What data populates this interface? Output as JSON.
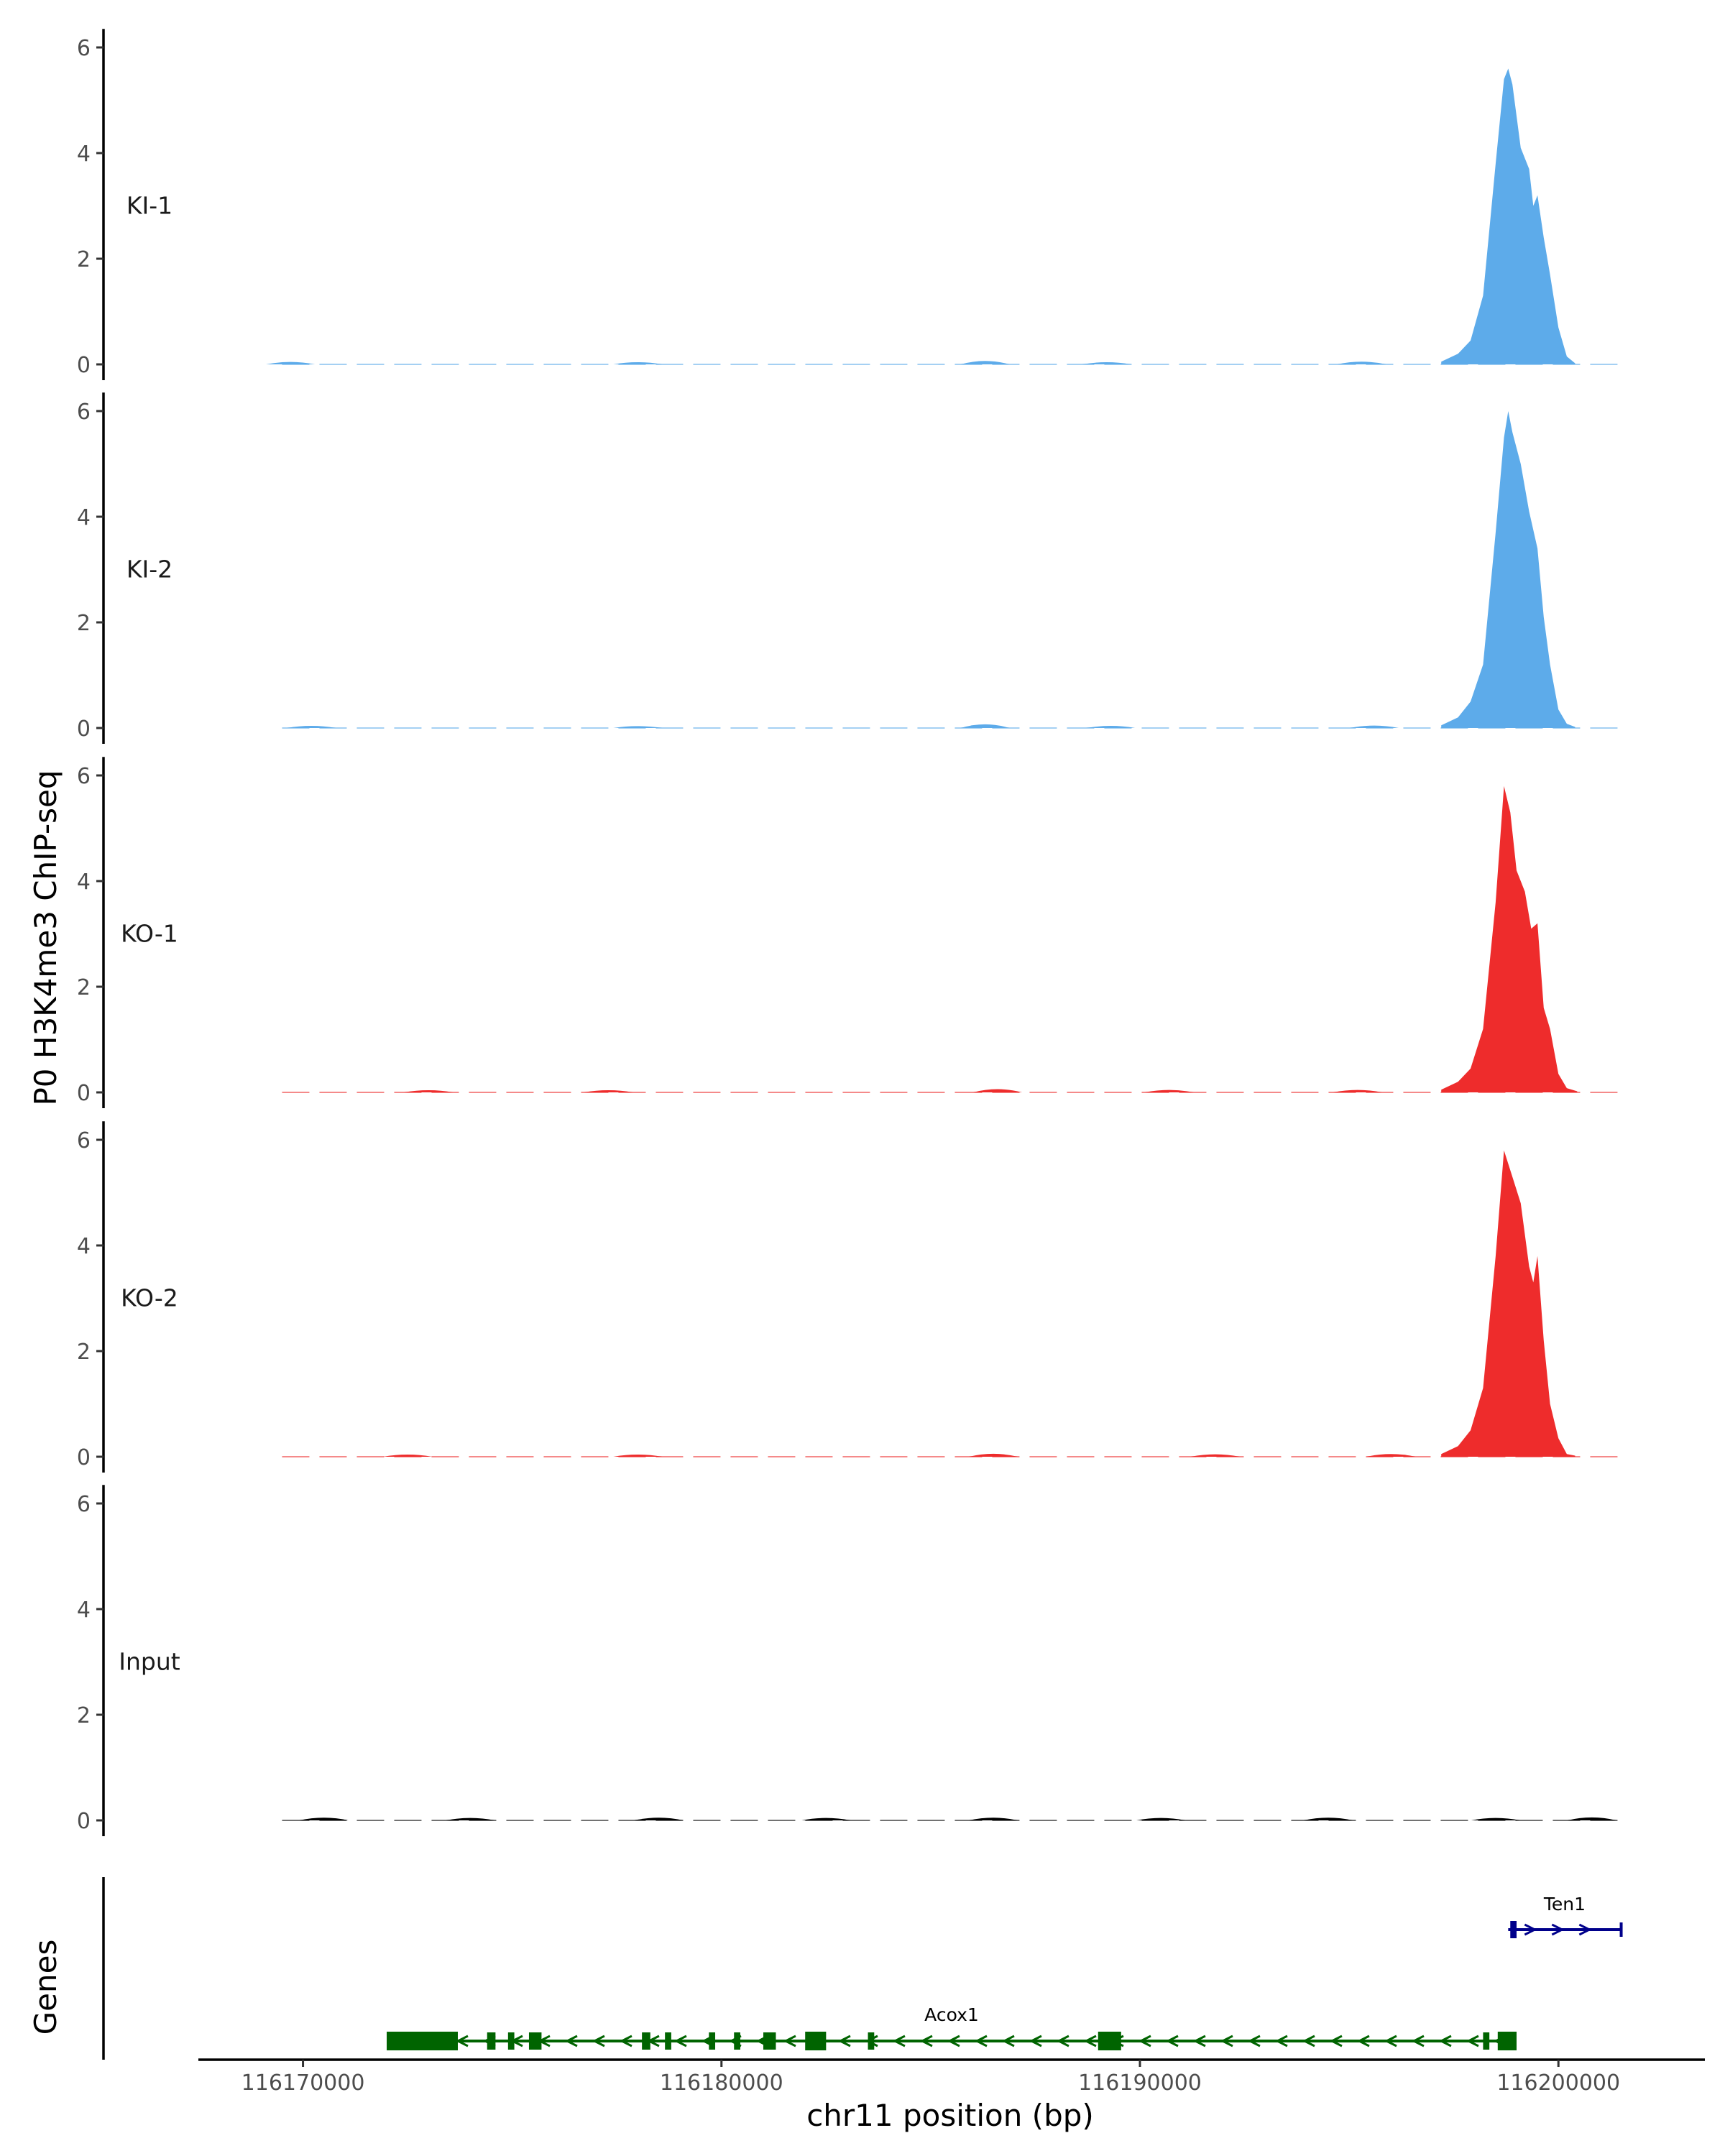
{
  "chart_data": {
    "type": "area",
    "title": "",
    "ylabel": "P0 H3K4me3 ChIP-seq",
    "xlabel": "chr11 position (bp)",
    "gene_panel_label": "Genes",
    "ylim": [
      0,
      6.3
    ],
    "yticks": [
      "0",
      "2",
      "4",
      "6"
    ],
    "xlim": [
      116167500,
      116203500
    ],
    "xticks": [
      "116170000",
      "116180000",
      "116190000",
      "116200000"
    ],
    "xtick_values": [
      116170000,
      116180000,
      116190000,
      116200000
    ],
    "data_range": [
      116169500,
      116201500
    ],
    "tracks": [
      {
        "name": "KI-1",
        "color": "#5dabea",
        "peak": {
          "x": [
            116197200,
            116197600,
            116197900,
            116198200,
            116198500,
            116198700,
            116198800,
            116198900,
            116199100,
            116199300,
            116199400,
            116199500,
            116199650,
            116199800,
            116200000,
            116200200,
            116200400
          ],
          "y": [
            0.05,
            0.2,
            0.45,
            1.3,
            3.8,
            5.4,
            5.6,
            5.3,
            4.1,
            3.7,
            3.0,
            3.2,
            2.4,
            1.7,
            0.7,
            0.15,
            0.02
          ]
        },
        "bumps": [
          [
            116169700,
            0.05
          ],
          [
            116178000,
            0.04
          ],
          [
            116186300,
            0.09
          ],
          [
            116189200,
            0.04
          ],
          [
            116195300,
            0.06
          ]
        ]
      },
      {
        "name": "KI-2",
        "color": "#5dabea",
        "peak": {
          "x": [
            116197200,
            116197600,
            116197900,
            116198200,
            116198500,
            116198700,
            116198800,
            116198900,
            116199100,
            116199300,
            116199500,
            116199650,
            116199800,
            116200000,
            116200200,
            116200400
          ],
          "y": [
            0.05,
            0.2,
            0.5,
            1.2,
            3.7,
            5.5,
            6.0,
            5.6,
            5.0,
            4.1,
            3.4,
            2.1,
            1.2,
            0.35,
            0.08,
            0.02
          ]
        },
        "bumps": [
          [
            116170200,
            0.04
          ],
          [
            116178000,
            0.03
          ],
          [
            116186300,
            0.1
          ],
          [
            116189300,
            0.04
          ],
          [
            116195600,
            0.05
          ]
        ]
      },
      {
        "name": "KO-1",
        "color": "#ee2c2c",
        "peak": {
          "x": [
            116197200,
            116197600,
            116197900,
            116198200,
            116198500,
            116198700,
            116198850,
            116199000,
            116199200,
            116199350,
            116199500,
            116199650,
            116199800,
            116200000,
            116200200,
            116200450
          ],
          "y": [
            0.05,
            0.2,
            0.45,
            1.2,
            3.6,
            5.8,
            5.3,
            4.2,
            3.8,
            3.1,
            3.2,
            1.6,
            1.2,
            0.35,
            0.08,
            0.02
          ]
        },
        "bumps": [
          [
            116173000,
            0.04
          ],
          [
            116177300,
            0.04
          ],
          [
            116186600,
            0.08
          ],
          [
            116190700,
            0.05
          ],
          [
            116195200,
            0.05
          ]
        ]
      },
      {
        "name": "KO-2",
        "color": "#ee2c2c",
        "peak": {
          "x": [
            116197200,
            116197600,
            116197900,
            116198200,
            116198500,
            116198700,
            116198900,
            116199100,
            116199300,
            116199400,
            116199500,
            116199650,
            116199800,
            116200000,
            116200200,
            116200400
          ],
          "y": [
            0.05,
            0.2,
            0.5,
            1.3,
            3.8,
            5.8,
            5.3,
            4.8,
            3.6,
            3.3,
            3.8,
            2.2,
            1.0,
            0.35,
            0.05,
            0.02
          ]
        },
        "bumps": [
          [
            116172500,
            0.04
          ],
          [
            116178000,
            0.04
          ],
          [
            116186500,
            0.07
          ],
          [
            116191800,
            0.05
          ],
          [
            116196000,
            0.06
          ]
        ]
      },
      {
        "name": "Input",
        "color": "#000000",
        "peak": null,
        "bumps": [
          [
            116170500,
            0.06
          ],
          [
            116174000,
            0.05
          ],
          [
            116178500,
            0.06
          ],
          [
            116182500,
            0.05
          ],
          [
            116186500,
            0.06
          ],
          [
            116190500,
            0.05
          ],
          [
            116194500,
            0.06
          ],
          [
            116198500,
            0.05
          ],
          [
            116200800,
            0.07
          ]
        ]
      }
    ],
    "genes": [
      {
        "name": "Acox1",
        "strand": "-",
        "color": "#006400",
        "start": 116172000,
        "end": 116199000,
        "exons": [
          [
            116172000,
            116173700
          ],
          [
            116174400,
            116174600
          ],
          [
            116174900,
            116175050
          ],
          [
            116175400,
            116175700
          ],
          [
            116178100,
            116178300
          ],
          [
            116178650,
            116178800
          ],
          [
            116179700,
            116179850
          ],
          [
            116180300,
            116180450
          ],
          [
            116181000,
            116181300
          ],
          [
            116182000,
            116182500
          ],
          [
            116183500,
            116183650
          ],
          [
            116189000,
            116189550
          ],
          [
            116198200,
            116198350
          ],
          [
            116198550,
            116199000
          ]
        ]
      },
      {
        "name": "Ten1",
        "strand": "+",
        "color": "#00008b",
        "start": 116198800,
        "end": 116201500,
        "exons": [
          [
            116198850,
            116199000
          ]
        ]
      }
    ]
  }
}
